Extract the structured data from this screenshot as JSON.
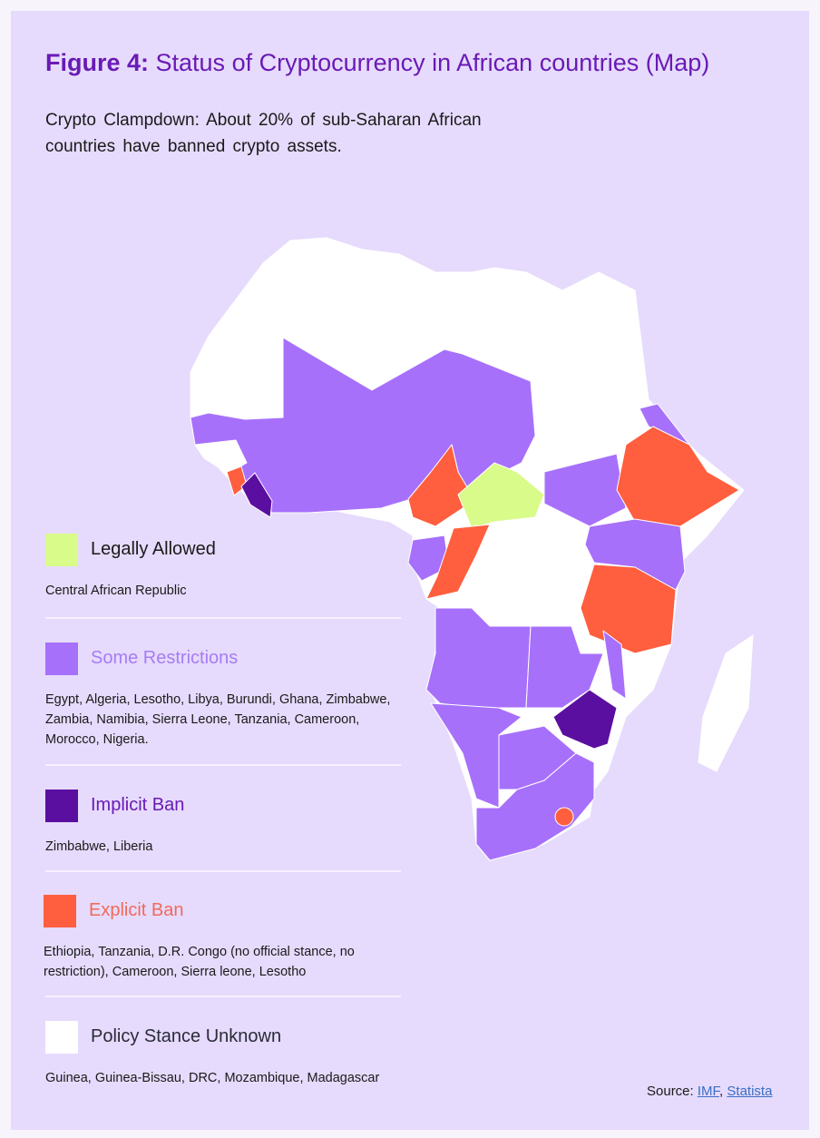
{
  "title": {
    "prefix": "Figure 4:",
    "text": " Status of Cryptocurrency in African countries (Map)"
  },
  "subtitle": "Crypto Clampdown: About 20% of sub-Saharan African countries have banned crypto assets.",
  "colors": {
    "card_bg": "#e6dbfc",
    "title": "#6a1ab5",
    "legally_allowed": "#d9fb8a",
    "some_restrictions": "#a770fb",
    "implicit_ban": "#5a0fa0",
    "explicit_ban": "#ff5e3f",
    "unknown": "#ffffff"
  },
  "legend": [
    {
      "key": "legally_allowed",
      "label": "Legally Allowed",
      "label_color": "#1a1a1a",
      "countries": "Central African Republic"
    },
    {
      "key": "some_restrictions",
      "label": "Some Restrictions",
      "label_color": "#a77cf5",
      "countries": "Egypt, Algeria, Lesotho, Libya, Burundi, Ghana, Zimbabwe, Zambia, Namibia, Sierra Leone, Tanzania, Cameroon, Morocco, Nigeria."
    },
    {
      "key": "implicit_ban",
      "label": "Implicit Ban",
      "label_color": "#6a1ab5",
      "countries": "Zimbabwe, Liberia"
    },
    {
      "key": "explicit_ban",
      "label": "Explicit Ban",
      "label_color": "#f06a5a",
      "countries": "Ethiopia, Tanzania, D.R. Congo (no official stance, no restriction), Cameroon, Sierra leone, Lesotho"
    },
    {
      "key": "unknown",
      "label": "Policy Stance Unknown",
      "label_color": "#2a2a3a",
      "countries": "Guinea, Guinea-Bissau, DRC, Mozambique, Madagascar"
    }
  ],
  "map_regions": [
    {
      "region": "west-sahel-africa",
      "status": "some_restrictions"
    },
    {
      "region": "guinea",
      "status": "unknown"
    },
    {
      "region": "sierra-leone",
      "status": "explicit_ban"
    },
    {
      "region": "liberia",
      "status": "implicit_ban"
    },
    {
      "region": "cameroon",
      "status": "explicit_ban"
    },
    {
      "region": "central-african-republic",
      "status": "legally_allowed"
    },
    {
      "region": "gabon",
      "status": "some_restrictions"
    },
    {
      "region": "congo",
      "status": "explicit_ban"
    },
    {
      "region": "south-sudan",
      "status": "some_restrictions"
    },
    {
      "region": "eritrea",
      "status": "some_restrictions"
    },
    {
      "region": "ethiopia",
      "status": "explicit_ban"
    },
    {
      "region": "uganda-kenya",
      "status": "some_restrictions"
    },
    {
      "region": "tanzania",
      "status": "explicit_ban"
    },
    {
      "region": "angola",
      "status": "some_restrictions"
    },
    {
      "region": "zambia",
      "status": "some_restrictions"
    },
    {
      "region": "malawi",
      "status": "some_restrictions"
    },
    {
      "region": "zimbabwe",
      "status": "implicit_ban"
    },
    {
      "region": "namibia",
      "status": "some_restrictions"
    },
    {
      "region": "botswana",
      "status": "some_restrictions"
    },
    {
      "region": "south-africa",
      "status": "some_restrictions"
    },
    {
      "region": "lesotho",
      "status": "explicit_ban"
    },
    {
      "region": "madagascar",
      "status": "unknown"
    }
  ],
  "source": {
    "label": "Source: ",
    "links": [
      "IMF",
      "Statista"
    ],
    "sep": ", "
  }
}
